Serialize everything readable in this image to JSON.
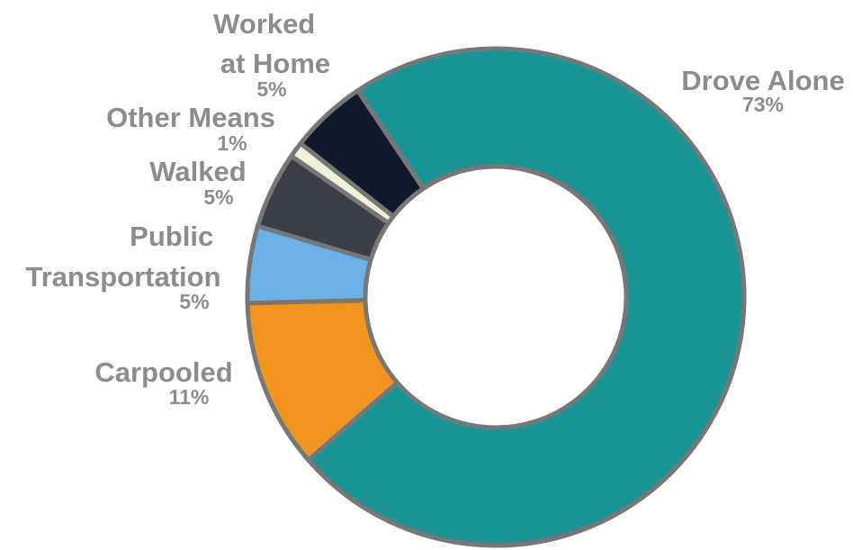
{
  "chart_data": {
    "type": "donut",
    "categories": [
      "Drove Alone",
      "Carpooled",
      "Public Transportation",
      "Walked",
      "Other Means",
      "Worked at Home"
    ],
    "values": [
      73,
      11,
      5,
      5,
      1,
      5
    ],
    "value_labels": [
      "73%",
      "11%",
      "5%",
      "5%",
      "1%",
      "5%"
    ],
    "colors": [
      "#1a9595",
      "#f3941e",
      "#6cb2e8",
      "#3b3e46",
      "#f3f0d9",
      "#0e1a2c"
    ]
  }
}
